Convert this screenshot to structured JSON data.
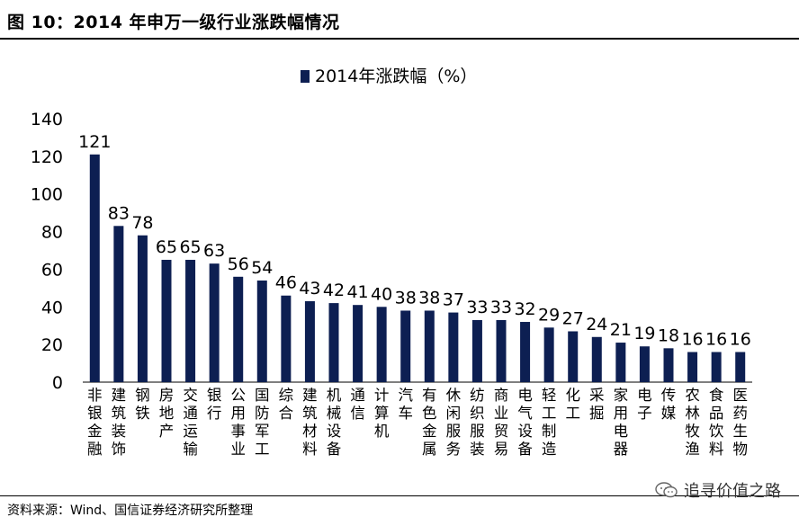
{
  "header": {
    "title": "图 10：2014 年申万一级行业涨跌幅情况"
  },
  "footer": {
    "source": "资料来源：Wind、国信证券经济研究所整理"
  },
  "watermark": {
    "text": "追寻价值之路"
  },
  "chart_data": {
    "type": "bar",
    "legend_label": "2014年涨跌幅（%）",
    "legend_placement": "top-center",
    "grid": false,
    "ylim": [
      0,
      140
    ],
    "yticks": [
      0,
      20,
      40,
      60,
      80,
      100,
      120,
      140
    ],
    "bar_color": "#0d1f52",
    "categories": [
      "非银金融",
      "建筑装饰",
      "钢铁",
      "房地产",
      "交通运输",
      "银行",
      "公用事业",
      "国防军工",
      "综合",
      "建筑材料",
      "机械设备",
      "通信",
      "计算机",
      "汽车",
      "有色金属",
      "休闲服务",
      "纺织服装",
      "商业贸易",
      "电气设备",
      "轻工制造",
      "化工",
      "采掘",
      "家用电器",
      "电子",
      "传媒",
      "农林牧渔",
      "食品饮料",
      "医药生物"
    ],
    "values": [
      121,
      83,
      78,
      65,
      65,
      63,
      56,
      54,
      46,
      43,
      42,
      41,
      40,
      38,
      38,
      37,
      33,
      33,
      32,
      29,
      27,
      24,
      21,
      19,
      18,
      16,
      16,
      16
    ]
  }
}
